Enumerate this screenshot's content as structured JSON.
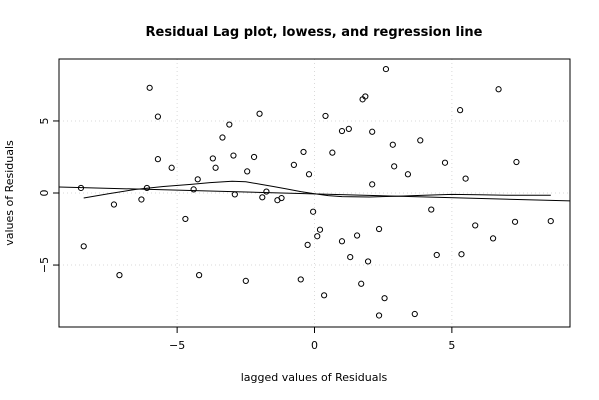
{
  "chart_data": {
    "type": "scatter",
    "title": "Residual Lag plot, lowess, and regression line",
    "xlabel": "lagged values of Residuals",
    "ylabel": "values of Residuals",
    "xlim": [
      -9.3,
      9.3
    ],
    "ylim": [
      -9.3,
      9.3
    ],
    "x_ticks": [
      -5,
      0,
      5
    ],
    "y_ticks": [
      -5,
      0,
      5
    ],
    "grid": true,
    "points": [
      [
        -8.5,
        0.35
      ],
      [
        -8.4,
        -3.7
      ],
      [
        -7.3,
        -0.8
      ],
      [
        -7.1,
        -5.7
      ],
      [
        -6.3,
        -0.45
      ],
      [
        -6.1,
        0.35
      ],
      [
        -6.0,
        7.3
      ],
      [
        -5.7,
        5.3
      ],
      [
        -5.7,
        2.35
      ],
      [
        -5.2,
        1.75
      ],
      [
        -4.7,
        -1.8
      ],
      [
        -4.4,
        0.25
      ],
      [
        -4.25,
        0.95
      ],
      [
        -4.2,
        -5.7
      ],
      [
        -3.7,
        2.4
      ],
      [
        -3.6,
        1.75
      ],
      [
        -3.35,
        3.85
      ],
      [
        -3.1,
        4.75
      ],
      [
        -2.95,
        2.6
      ],
      [
        -2.9,
        -0.1
      ],
      [
        -2.5,
        -6.1
      ],
      [
        -2.45,
        1.5
      ],
      [
        -2.2,
        2.5
      ],
      [
        -2.0,
        5.5
      ],
      [
        -1.9,
        -0.3
      ],
      [
        -1.75,
        0.1
      ],
      [
        -1.35,
        -0.5
      ],
      [
        -1.2,
        -0.35
      ],
      [
        -0.75,
        1.95
      ],
      [
        -0.5,
        -6.0
      ],
      [
        -0.4,
        2.85
      ],
      [
        -0.2,
        1.3
      ],
      [
        -0.25,
        -3.6
      ],
      [
        -0.05,
        -1.3
      ],
      [
        0.1,
        -3.0
      ],
      [
        0.2,
        -2.55
      ],
      [
        0.4,
        5.35
      ],
      [
        0.35,
        -7.1
      ],
      [
        0.65,
        2.8
      ],
      [
        1.0,
        -3.35
      ],
      [
        1.0,
        4.3
      ],
      [
        1.25,
        4.45
      ],
      [
        1.3,
        -4.45
      ],
      [
        1.55,
        -2.95
      ],
      [
        1.7,
        -6.3
      ],
      [
        1.75,
        6.5
      ],
      [
        1.85,
        6.7
      ],
      [
        1.95,
        -4.75
      ],
      [
        2.1,
        4.25
      ],
      [
        2.1,
        0.6
      ],
      [
        2.35,
        -2.5
      ],
      [
        2.35,
        -8.5
      ],
      [
        2.55,
        -7.3
      ],
      [
        2.6,
        8.6
      ],
      [
        2.85,
        3.35
      ],
      [
        2.9,
        1.85
      ],
      [
        3.4,
        1.3
      ],
      [
        3.65,
        -8.4
      ],
      [
        3.85,
        3.65
      ],
      [
        4.25,
        -1.15
      ],
      [
        4.45,
        -4.3
      ],
      [
        4.75,
        2.1
      ],
      [
        5.3,
        5.75
      ],
      [
        5.35,
        -4.25
      ],
      [
        5.5,
        1.0
      ],
      [
        5.85,
        -2.25
      ],
      [
        6.5,
        -3.15
      ],
      [
        6.7,
        7.2
      ],
      [
        7.3,
        -2.0
      ],
      [
        7.35,
        2.15
      ],
      [
        8.6,
        -1.95
      ]
    ],
    "regression_line": [
      [
        -9.3,
        0.42
      ],
      [
        9.3,
        -0.55
      ]
    ],
    "lowess_line": [
      [
        -8.4,
        -0.35
      ],
      [
        -7.5,
        -0.05
      ],
      [
        -6.5,
        0.25
      ],
      [
        -5.5,
        0.45
      ],
      [
        -4.5,
        0.6
      ],
      [
        -3.8,
        0.72
      ],
      [
        -3.0,
        0.82
      ],
      [
        -2.5,
        0.78
      ],
      [
        -2.0,
        0.62
      ],
      [
        -1.5,
        0.45
      ],
      [
        -1.0,
        0.28
      ],
      [
        -0.5,
        0.1
      ],
      [
        0.0,
        -0.05
      ],
      [
        0.5,
        -0.18
      ],
      [
        1.0,
        -0.25
      ],
      [
        2.0,
        -0.28
      ],
      [
        3.0,
        -0.22
      ],
      [
        4.0,
        -0.15
      ],
      [
        5.0,
        -0.1
      ],
      [
        6.0,
        -0.12
      ],
      [
        7.0,
        -0.15
      ],
      [
        8.6,
        -0.15
      ]
    ]
  }
}
